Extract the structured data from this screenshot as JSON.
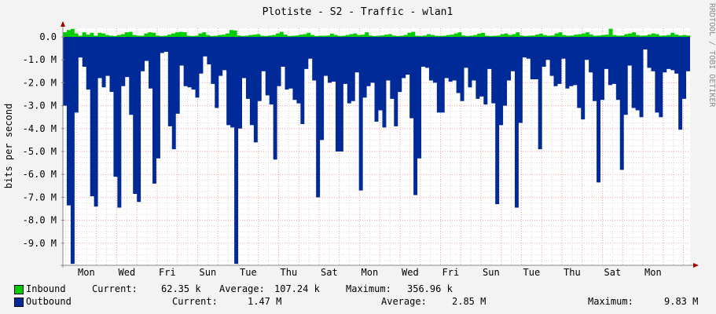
{
  "chart_data": {
    "type": "area",
    "title": "Plotiste - S2 - Traffic - wlan1",
    "ylabel": "bits per second",
    "xlabel": "",
    "ylim": [
      -10.0,
      0.4
    ],
    "y_unit": "M",
    "y_ticks": [
      {
        "value": 0,
        "label": "0.0"
      },
      {
        "value": -1,
        "label": "-1.0 M"
      },
      {
        "value": -2,
        "label": "-2.0 M"
      },
      {
        "value": -3,
        "label": "-3.0 M"
      },
      {
        "value": -4,
        "label": "-4.0 M"
      },
      {
        "value": -5,
        "label": "-5.0 M"
      },
      {
        "value": -6,
        "label": "-6.0 M"
      },
      {
        "value": -7,
        "label": "-7.0 M"
      },
      {
        "value": -8,
        "label": "-8.0 M"
      },
      {
        "value": -9,
        "label": "-9.0 M"
      }
    ],
    "x_days": 31,
    "x_tick_labels": [
      "Mon",
      "Wed",
      "Fri",
      "Sun",
      "Tue",
      "Thu",
      "Sat",
      "Mon",
      "Wed",
      "Fri",
      "Sun",
      "Tue",
      "Thu",
      "Sat",
      "Mon"
    ],
    "grid": true,
    "series": [
      {
        "name": "Inbound",
        "color": "#00cc00",
        "values_M": [
          0.2,
          0.3,
          0.35,
          0.15,
          0.05,
          0.2,
          0.1,
          0.18,
          0.05,
          0.18,
          0.15,
          0.08,
          0.05,
          0.04,
          0.08,
          0.12,
          0.2,
          0.22,
          0.08,
          0.05,
          0.05,
          0.15,
          0.2,
          0.18,
          0.06,
          0.04,
          0.05,
          0.1,
          0.15,
          0.2,
          0.22,
          0.2,
          0.05,
          0.04,
          0.05,
          0.15,
          0.2,
          0.08,
          0.04,
          0.05,
          0.08,
          0.1,
          0.15,
          0.3,
          0.28,
          0.06,
          0.04,
          0.05,
          0.08,
          0.1,
          0.12,
          0.05,
          0.04,
          0.06,
          0.08,
          0.15,
          0.22,
          0.1,
          0.04,
          0.05,
          0.06,
          0.1,
          0.12,
          0.18,
          0.08,
          0.04,
          0.05,
          0.05,
          0.06,
          0.14,
          0.08,
          0.04,
          0.05,
          0.08,
          0.12,
          0.15,
          0.08,
          0.1,
          0.2,
          0.06,
          0.04,
          0.05,
          0.06,
          0.1,
          0.12,
          0.06,
          0.04,
          0.05,
          0.08,
          0.18,
          0.22,
          0.05,
          0.04,
          0.06,
          0.12,
          0.08,
          0.05,
          0.04,
          0.05,
          0.08,
          0.1,
          0.15,
          0.2,
          0.06,
          0.04,
          0.05,
          0.08,
          0.14,
          0.18,
          0.05,
          0.04,
          0.05,
          0.06,
          0.12,
          0.15,
          0.08,
          0.12,
          0.2,
          0.06,
          0.04,
          0.05,
          0.06,
          0.1,
          0.14,
          0.08,
          0.05,
          0.06,
          0.15,
          0.2,
          0.08,
          0.05,
          0.06,
          0.1,
          0.12,
          0.15,
          0.2,
          0.1,
          0.05,
          0.06,
          0.08,
          0.1,
          0.357,
          0.08,
          0.05,
          0.06,
          0.12,
          0.15,
          0.2,
          0.08,
          0.05,
          0.06,
          0.1,
          0.15,
          0.12,
          0.05,
          0.06,
          0.08,
          0.18,
          0.1,
          0.06,
          0.08,
          0.06
        ]
      },
      {
        "name": "Outbound",
        "color": "#002a97",
        "values_M": [
          -3.0,
          -7.35,
          -9.9,
          -3.3,
          -0.9,
          -1.3,
          -2.3,
          -6.95,
          -7.4,
          -1.8,
          -2.2,
          -1.7,
          -2.4,
          -6.1,
          -7.45,
          -2.15,
          -1.75,
          -3.4,
          -6.85,
          -7.2,
          -1.5,
          -1.05,
          -2.25,
          -6.4,
          -5.3,
          -0.7,
          -0.65,
          -3.9,
          -4.9,
          -3.35,
          -1.25,
          -2.15,
          -2.2,
          -2.3,
          -2.65,
          -1.6,
          -0.85,
          -1.2,
          -2.05,
          -3.1,
          -1.7,
          -1.45,
          -3.85,
          -3.95,
          -9.9,
          -4.0,
          -1.8,
          -2.7,
          -3.85,
          -4.6,
          -2.8,
          -1.5,
          -2.55,
          -2.95,
          -5.35,
          -2.15,
          -1.3,
          -2.3,
          -2.25,
          -2.75,
          -2.9,
          -3.8,
          -1.4,
          -0.95,
          -1.9,
          -7.0,
          -4.5,
          -1.7,
          -2.0,
          -1.95,
          -5.0,
          -5.0,
          -2.05,
          -2.9,
          -2.8,
          -1.55,
          -6.7,
          -2.65,
          -2.15,
          -2.0,
          -3.7,
          -3.2,
          -3.95,
          -1.9,
          -2.7,
          -3.9,
          -2.4,
          -1.8,
          -1.65,
          -3.55,
          -6.9,
          -5.3,
          -1.3,
          -1.35,
          -1.9,
          -2.0,
          -3.3,
          -3.3,
          -1.8,
          -1.95,
          -1.9,
          -2.45,
          -2.8,
          -1.35,
          -2.2,
          -1.9,
          -2.7,
          -2.6,
          -2.95,
          -1.4,
          -2.9,
          -7.3,
          -3.85,
          -3.0,
          -1.9,
          -1.5,
          -7.45,
          -3.75,
          -0.9,
          -0.95,
          -1.85,
          -1.85,
          -4.9,
          -1.3,
          -1.0,
          -1.7,
          -2.15,
          -2.05,
          -0.95,
          -2.25,
          -2.15,
          -2.1,
          -3.1,
          -3.6,
          -1.0,
          -1.55,
          -2.8,
          -6.35,
          -2.75,
          -1.4,
          -2.1,
          -2.05,
          -2.75,
          -5.8,
          -3.4,
          -1.25,
          -3.1,
          -3.2,
          -3.5,
          -0.55,
          -1.35,
          -1.5,
          -3.3,
          -3.5,
          -1.55,
          -1.4,
          -1.45,
          -1.6,
          -4.05,
          -2.7,
          -1.5
        ]
      }
    ]
  },
  "legend": {
    "inbound": {
      "label": "Inbound",
      "current_label": "Current:",
      "current": "62.35 k",
      "average_label": "Average:",
      "average": "107.24 k",
      "maximum_label": "Maximum:",
      "maximum": "356.96 k"
    },
    "outbound": {
      "label": "Outbound",
      "current_label": "Current:",
      "current": "1.47 M",
      "average_label": "Average:",
      "average": "2.85 M",
      "maximum_label": "Maximum:",
      "maximum": "9.83 M"
    }
  },
  "credit": "RRDTOOL / TOBI OETIKER"
}
